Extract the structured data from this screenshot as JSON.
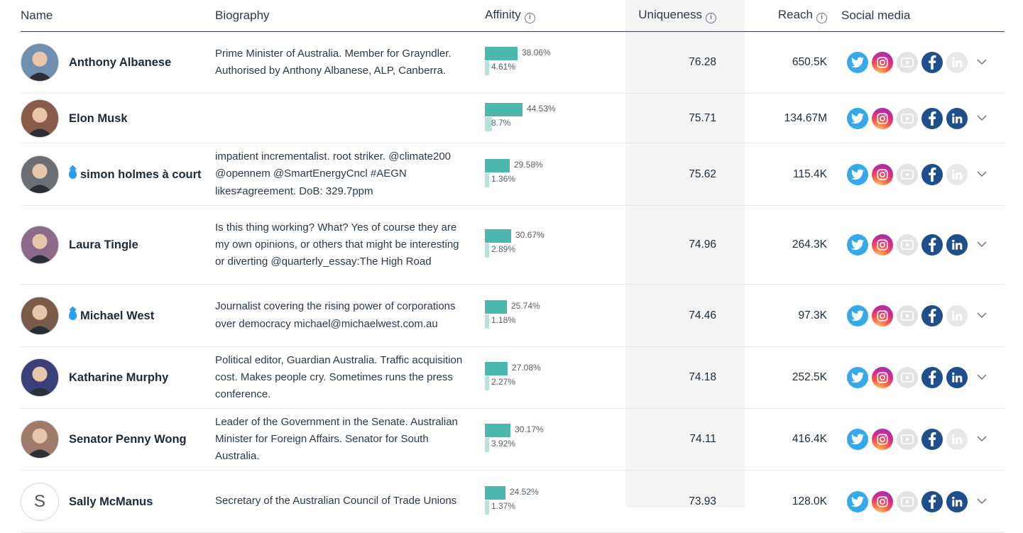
{
  "columns": {
    "name": "Name",
    "biography": "Biography",
    "affinity": "Affinity",
    "uniqueness": "Uniqueness",
    "reach": "Reach",
    "social": "Social media"
  },
  "rows": [
    {
      "name": "Anthony Albanese",
      "drop": false,
      "bio": "Prime Minister of Australia. Member for Grayndler. Authorised by Anthony Albanese, ALP, Canberra.",
      "aff1": "38.06%",
      "aff2": "4.61%",
      "aff1_value": 38.06,
      "aff2_value": 4.61,
      "uniqueness": "76.28",
      "reach": "650.5K",
      "linkedin": false,
      "avatar_letter": "",
      "avatar_color": "#6f8fb0"
    },
    {
      "name": "Elon Musk",
      "drop": false,
      "bio": "",
      "aff1": "44.53%",
      "aff2": "8.7%",
      "aff1_value": 44.53,
      "aff2_value": 8.7,
      "uniqueness": "75.71",
      "reach": "134.67M",
      "linkedin": true,
      "avatar_letter": "",
      "avatar_color": "#8a5a4a"
    },
    {
      "name": "simon holmes à court",
      "drop": true,
      "bio": "impatient incrementalist. root striker. @climate200 @opennem @SmartEnergyCncl #AEGN likes≠agreement. DoB: 329.7ppm",
      "aff1": "29.58%",
      "aff2": "1.36%",
      "aff1_value": 29.58,
      "aff2_value": 1.36,
      "uniqueness": "75.62",
      "reach": "115.4K",
      "linkedin": false,
      "avatar_letter": "",
      "avatar_color": "#6b6f73"
    },
    {
      "name": "Laura Tingle",
      "drop": false,
      "bio": "Is this thing working? What? Yes of course they are my own opinions, or others that might be interesting or diverting @quarterly_essay:The High Road",
      "aff1": "30.67%",
      "aff2": "2.89%",
      "aff1_value": 30.67,
      "aff2_value": 2.89,
      "uniqueness": "74.96",
      "reach": "264.3K",
      "linkedin": true,
      "avatar_letter": "",
      "avatar_color": "#8c6a8a"
    },
    {
      "name": "Michael West",
      "drop": true,
      "bio": "Journalist covering the rising power of corporations over democracy michael@michaelwest.com.au",
      "aff1": "25.74%",
      "aff2": "1.18%",
      "aff1_value": 25.74,
      "aff2_value": 1.18,
      "uniqueness": "74.46",
      "reach": "97.3K",
      "linkedin": false,
      "avatar_letter": "",
      "avatar_color": "#7a5a48"
    },
    {
      "name": "Katharine Murphy",
      "drop": false,
      "bio": "Political editor, Guardian Australia. Traffic acquisition cost. Makes people cry. Sometimes runs the press conference.",
      "aff1": "27.08%",
      "aff2": "2.27%",
      "aff1_value": 27.08,
      "aff2_value": 2.27,
      "uniqueness": "74.18",
      "reach": "252.5K",
      "linkedin": true,
      "avatar_letter": "",
      "avatar_color": "#3a3f7a"
    },
    {
      "name": "Senator Penny Wong",
      "drop": false,
      "bio": "Leader of the Government in the Senate. Australian Minister for Foreign Affairs. Senator for South Australia.",
      "aff1": "30.17%",
      "aff2": "3.92%",
      "aff1_value": 30.17,
      "aff2_value": 3.92,
      "uniqueness": "74.11",
      "reach": "416.4K",
      "linkedin": false,
      "avatar_letter": "",
      "avatar_color": "#a07a6a"
    },
    {
      "name": "Sally McManus",
      "drop": false,
      "bio": "Secretary of the Australian Council of Trade Unions",
      "aff1": "24.52%",
      "aff2": "1.37%",
      "aff1_value": 24.52,
      "aff2_value": 1.37,
      "uniqueness": "73.93",
      "reach": "128.0K",
      "linkedin": true,
      "avatar_letter": "S",
      "avatar_color": "#ffffff"
    }
  ]
}
